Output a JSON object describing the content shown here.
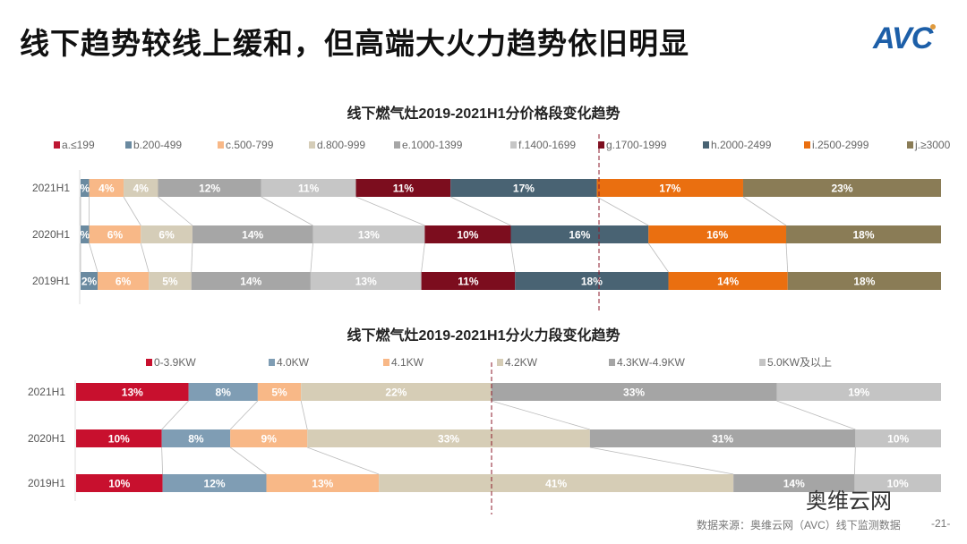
{
  "title": "线下趋势较线上缓和，但高端大火力趋势依旧明显",
  "logo": "AVC",
  "watermark": "奥维云网",
  "source": "数据来源：奥维云网（AVC）线下监测数据",
  "page_number": "-21-",
  "chart_data": [
    {
      "type": "bar",
      "stacked": "100%",
      "orientation": "horizontal",
      "title": "线下燃气灶2019-2021H1分价格段变化趋势",
      "legend_position": "top",
      "categories": [
        "2021H1",
        "2020H1",
        "2019H1"
      ],
      "series": [
        {
          "name": "a.≤199",
          "color": "#be1733",
          "values": [
            0,
            0,
            0
          ],
          "labels": [
            "",
            "",
            ""
          ]
        },
        {
          "name": "b.200-499",
          "color": "#6a8aa0",
          "values": [
            1,
            1,
            2
          ],
          "labels": [
            "%",
            "%",
            "2%"
          ]
        },
        {
          "name": "c.500-799",
          "color": "#f8b887",
          "values": [
            4,
            6,
            6
          ],
          "labels": [
            "4%",
            "6%",
            "6%"
          ]
        },
        {
          "name": "d.800-999",
          "color": "#d5cdb8",
          "values": [
            4,
            6,
            5
          ],
          "labels": [
            "4%",
            "6%",
            "5%"
          ]
        },
        {
          "name": "e.1000-1399",
          "color": "#a6a6a6",
          "values": [
            12,
            14,
            14
          ],
          "labels": [
            "12%",
            "14%",
            "14%"
          ]
        },
        {
          "name": "f.1400-1699",
          "color": "#c6c6c6",
          "values": [
            11,
            13,
            13
          ],
          "labels": [
            "11%",
            "13%",
            "13%"
          ]
        },
        {
          "name": "g.1700-1999",
          "color": "#7c0d1e",
          "values": [
            11,
            10,
            11
          ],
          "labels": [
            "11%",
            "10%",
            "11%"
          ]
        },
        {
          "name": "h.2000-2499",
          "color": "#496373",
          "values": [
            17,
            16,
            18
          ],
          "labels": [
            "17%",
            "16%",
            "18%"
          ]
        },
        {
          "name": "i.2500-2999",
          "color": "#ea6f10",
          "values": [
            17,
            16,
            14
          ],
          "labels": [
            "17%",
            "16%",
            "14%"
          ]
        },
        {
          "name": "j.≥3000",
          "color": "#8a7c56",
          "values": [
            23,
            18,
            18
          ],
          "labels": [
            "23%",
            "18%",
            "18%"
          ]
        }
      ]
    },
    {
      "type": "bar",
      "stacked": "100%",
      "orientation": "horizontal",
      "title": "线下燃气灶2019-2021H1分火力段变化趋势",
      "legend_position": "top",
      "categories": [
        "2021H1",
        "2020H1",
        "2019H1"
      ],
      "series": [
        {
          "name": "0-3.9KW",
          "color": "#c8102e",
          "values": [
            13,
            10,
            10
          ],
          "labels": [
            "13%",
            "10%",
            "10%"
          ]
        },
        {
          "name": "4.0KW",
          "color": "#7f9db4",
          "values": [
            8,
            8,
            12
          ],
          "labels": [
            "8%",
            "8%",
            "12%"
          ]
        },
        {
          "name": "4.1KW",
          "color": "#f8b887",
          "values": [
            5,
            9,
            13
          ],
          "labels": [
            "5%",
            "9%",
            "13%"
          ]
        },
        {
          "name": "4.2KW",
          "color": "#d6cdb6",
          "values": [
            22,
            33,
            41
          ],
          "labels": [
            "22%",
            "33%",
            "41%"
          ]
        },
        {
          "name": "4.3KW-4.9KW",
          "color": "#a5a5a5",
          "values": [
            33,
            31,
            14
          ],
          "labels": [
            "33%",
            "31%",
            "14%"
          ]
        },
        {
          "name": "5.0KW及以上",
          "color": "#c4c4c4",
          "values": [
            19,
            10,
            10
          ],
          "labels": [
            "19%",
            "10%",
            "10%"
          ]
        }
      ]
    }
  ]
}
